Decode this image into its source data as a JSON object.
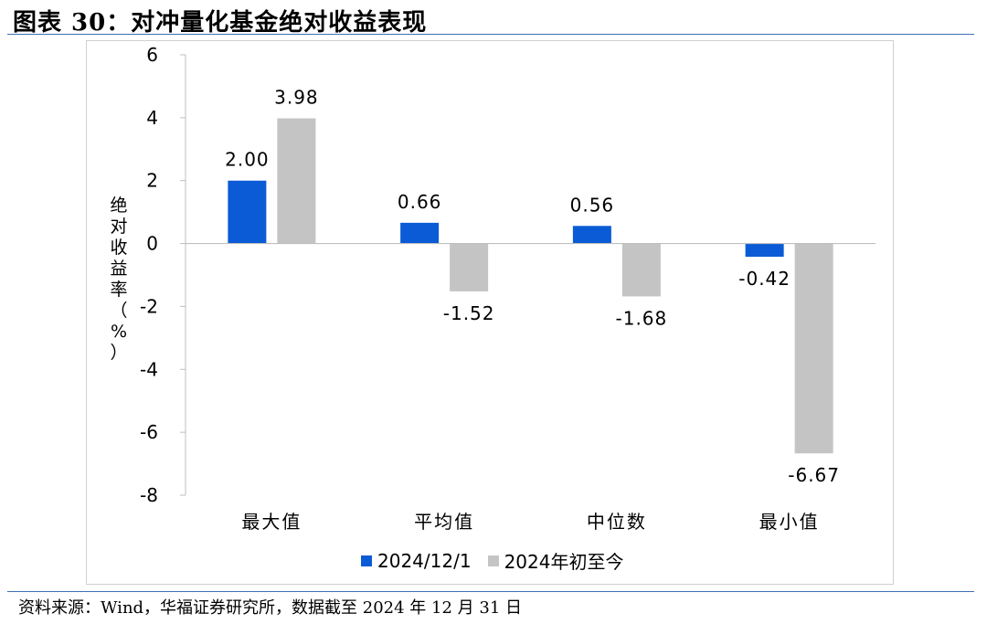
{
  "title": "图表 30：对冲量化基金绝对收益表现",
  "source": "资料来源：Wind，华福证券研究所，数据截至 2024 年 12 月 31 日",
  "colors": {
    "series1": "#0b5bd6",
    "series2": "#c4c4c4",
    "rule": "#3f6fb6"
  },
  "chart_data": {
    "type": "bar",
    "categories": [
      "最大值",
      "平均值",
      "中位数",
      "最小值"
    ],
    "series": [
      {
        "name": "2024/12/1",
        "values": [
          2.0,
          0.66,
          0.56,
          -0.42
        ],
        "labels": [
          "2.00",
          "0.66",
          "0.56",
          "-0.42"
        ]
      },
      {
        "name": "2024年初至今",
        "values": [
          3.98,
          -1.52,
          -1.68,
          -6.67
        ],
        "labels": [
          "3.98",
          "-1.52",
          "-1.68",
          "-6.67"
        ]
      }
    ],
    "ylabel": [
      "绝",
      "对",
      "收",
      "益",
      "率",
      "（",
      "%",
      "）"
    ],
    "ylim": [
      -8,
      6
    ],
    "yticks": [
      6,
      4,
      2,
      0,
      -2,
      -4,
      -6,
      -8
    ],
    "ytick_labels": [
      "6",
      "4",
      "2",
      "0",
      "-2",
      "-4",
      "-6",
      "-8"
    ],
    "grid": false,
    "legend_position": "bottom"
  }
}
